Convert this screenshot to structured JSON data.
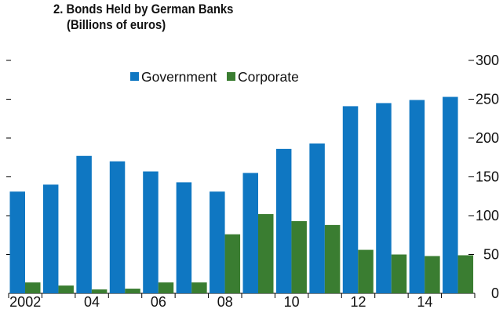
{
  "chart_data": {
    "type": "bar",
    "title": "2. Bonds Held by German Banks",
    "subtitle": "(Billions of euros)",
    "xlabel": "",
    "ylabel": "",
    "categories": [
      "2002",
      "03",
      "04",
      "05",
      "06",
      "07",
      "08",
      "09",
      "10",
      "11",
      "12",
      "13",
      "14",
      "15"
    ],
    "x_tick_labels": [
      "2002",
      "04",
      "06",
      "08",
      "10",
      "12",
      "14"
    ],
    "y_ticks": [
      0,
      50,
      100,
      150,
      200,
      250,
      300
    ],
    "ylim": [
      0,
      300
    ],
    "grid": false,
    "legend_position": "top",
    "series": [
      {
        "name": "Government",
        "color": "#0f77c2",
        "values": [
          131,
          140,
          177,
          170,
          157,
          143,
          131,
          155,
          186,
          193,
          241,
          245,
          249,
          253
        ]
      },
      {
        "name": "Corporate",
        "color": "#3a7d31",
        "values": [
          14,
          10,
          5,
          6,
          14,
          14,
          76,
          102,
          93,
          88,
          56,
          50,
          48,
          49
        ]
      }
    ]
  }
}
